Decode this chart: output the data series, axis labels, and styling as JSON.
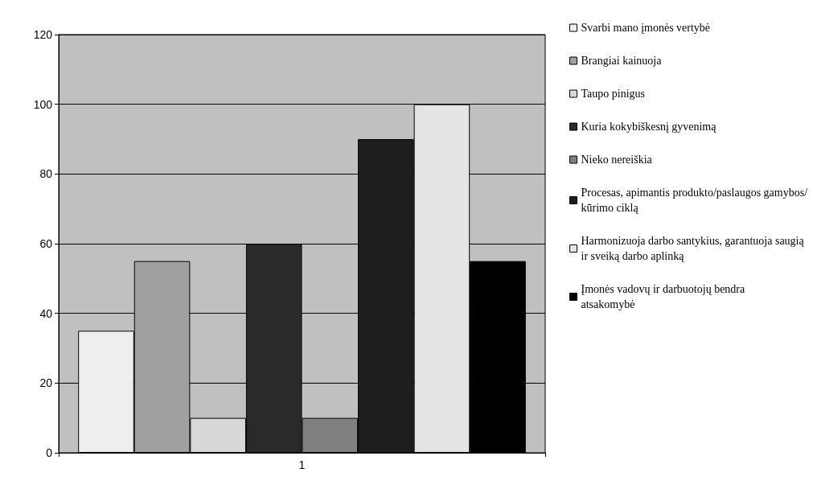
{
  "chart_data": {
    "type": "bar",
    "categories": [
      "1"
    ],
    "series": [
      {
        "name": "Svarbi mano įmonės vertybė",
        "color": "#eeeeee",
        "values": [
          35
        ]
      },
      {
        "name": "Brangiai kainuoja",
        "color": "#a0a0a0",
        "values": [
          55
        ]
      },
      {
        "name": "Taupo pinigus",
        "color": "#d8d8d8",
        "values": [
          10
        ]
      },
      {
        "name": "Kuria kokybiškesnį gyvenimą",
        "color": "#2a2a2a",
        "values": [
          60
        ]
      },
      {
        "name": "Nieko nereiškia",
        "color": "#808080",
        "values": [
          10
        ]
      },
      {
        "name": "Procesas, apimantis produkto/paslaugos gamybos/kūrimo ciklą",
        "color": "#1e1e1e",
        "values": [
          90
        ]
      },
      {
        "name": "Harmonizuoja darbo santykius, garantuoja saugią ir sveiką darbo aplinką",
        "color": "#e4e4e4",
        "values": [
          100
        ]
      },
      {
        "name": "Įmonės vadovų ir darbuotojų bendra atsakomybė",
        "color": "#000000",
        "values": [
          55
        ]
      }
    ],
    "ylim": [
      0,
      120
    ],
    "yticks": [
      0,
      20,
      40,
      60,
      80,
      100,
      120
    ],
    "grid": "y",
    "legend": "right"
  }
}
